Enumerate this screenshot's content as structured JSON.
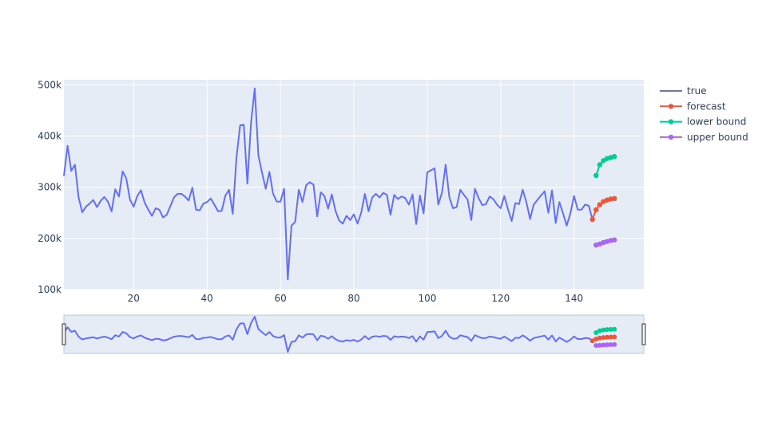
{
  "chart_data": {
    "type": "line",
    "title": "",
    "xlabel": "",
    "ylabel": "",
    "xlim": [
      1,
      159
    ],
    "ylim": [
      100000,
      510000
    ],
    "x_ticks": [
      20,
      40,
      60,
      80,
      100,
      120,
      140
    ],
    "x_tick_labels": [
      "20",
      "40",
      "60",
      "80",
      "100",
      "120",
      "140"
    ],
    "y_ticks": [
      100000,
      200000,
      300000,
      400000,
      500000
    ],
    "y_tick_labels": [
      "100k",
      "200k",
      "300k",
      "400k",
      "500k"
    ],
    "grid": true,
    "legend_position": "top-right",
    "rangeslider": true,
    "series": [
      {
        "name": "true",
        "color": "#636efa",
        "mode": "lines",
        "x": [
          1,
          2,
          3,
          4,
          5,
          6,
          7,
          8,
          9,
          10,
          11,
          12,
          13,
          14,
          15,
          16,
          17,
          18,
          19,
          20,
          21,
          22,
          23,
          24,
          25,
          26,
          27,
          28,
          29,
          30,
          31,
          32,
          33,
          34,
          35,
          36,
          37,
          38,
          39,
          40,
          41,
          42,
          43,
          44,
          45,
          46,
          47,
          48,
          49,
          50,
          51,
          52,
          53,
          54,
          55,
          56,
          57,
          58,
          59,
          60,
          61,
          62,
          63,
          64,
          65,
          66,
          67,
          68,
          69,
          70,
          71,
          72,
          73,
          74,
          75,
          76,
          77,
          78,
          79,
          80,
          81,
          82,
          83,
          84,
          85,
          86,
          87,
          88,
          89,
          90,
          91,
          92,
          93,
          94,
          95,
          96,
          97,
          98,
          99,
          100,
          101,
          102,
          103,
          104,
          105,
          106,
          107,
          108,
          109,
          110,
          111,
          112,
          113,
          114,
          115,
          116,
          117,
          118,
          119,
          120,
          121,
          122,
          123,
          124,
          125,
          126,
          127,
          128,
          129,
          130,
          131,
          132,
          133,
          134,
          135,
          136,
          137,
          138,
          139,
          140,
          141,
          142,
          143,
          144,
          145
        ],
        "values": [
          322000,
          381000,
          332000,
          344000,
          280000,
          251000,
          262000,
          268000,
          275000,
          261000,
          273000,
          281000,
          272000,
          253000,
          296000,
          282000,
          331000,
          317000,
          276000,
          262000,
          283000,
          294000,
          270000,
          256000,
          244000,
          259000,
          256000,
          241000,
          246000,
          263000,
          280000,
          287000,
          287000,
          282000,
          274000,
          299000,
          256000,
          255000,
          268000,
          271000,
          278000,
          266000,
          253000,
          254000,
          284000,
          295000,
          248000,
          357000,
          421000,
          422000,
          307000,
          426000,
          493000,
          362000,
          328000,
          297000,
          330000,
          287000,
          272000,
          272000,
          297000,
          120000,
          225000,
          232000,
          295000,
          271000,
          304000,
          310000,
          305000,
          243000,
          290000,
          283000,
          258000,
          286000,
          254000,
          235000,
          229000,
          244000,
          236000,
          247000,
          229000,
          250000,
          287000,
          253000,
          280000,
          287000,
          280000,
          289000,
          285000,
          246000,
          285000,
          277000,
          282000,
          279000,
          266000,
          286000,
          228000,
          284000,
          249000,
          329000,
          333000,
          337000,
          266000,
          289000,
          344000,
          281000,
          259000,
          261000,
          295000,
          285000,
          276000,
          236000,
          297000,
          279000,
          265000,
          267000,
          282000,
          277000,
          266000,
          259000,
          283000,
          257000,
          234000,
          269000,
          267000,
          295000,
          271000,
          238000,
          266000,
          275000,
          284000,
          292000,
          250000,
          294000,
          230000,
          271000,
          249000,
          225000,
          249000,
          283000,
          256000,
          256000,
          266000,
          264000,
          237000
        ]
      },
      {
        "name": "forecast",
        "color": "#ef553b",
        "mode": "lines+markers",
        "x": [
          145,
          146,
          147,
          148,
          149,
          150,
          151
        ],
        "values": [
          237000,
          256000,
          266000,
          272000,
          275000,
          277000,
          278000
        ]
      },
      {
        "name": "lower bound",
        "color": "#00cc96",
        "mode": "lines+markers",
        "x": [
          146,
          147,
          148,
          149,
          150,
          151
        ],
        "values": [
          323000,
          344000,
          352000,
          356000,
          358000,
          360000
        ]
      },
      {
        "name": "upper bound",
        "color": "#ab63fa",
        "mode": "lines+markers",
        "x": [
          146,
          147,
          148,
          149,
          150,
          151
        ],
        "values": [
          187000,
          189000,
          192000,
          194000,
          196000,
          197000
        ]
      }
    ]
  },
  "colors": {
    "plot_background": "#e5ecf6",
    "grid": "#ffffff",
    "tick_text": "#2a3f5f"
  }
}
